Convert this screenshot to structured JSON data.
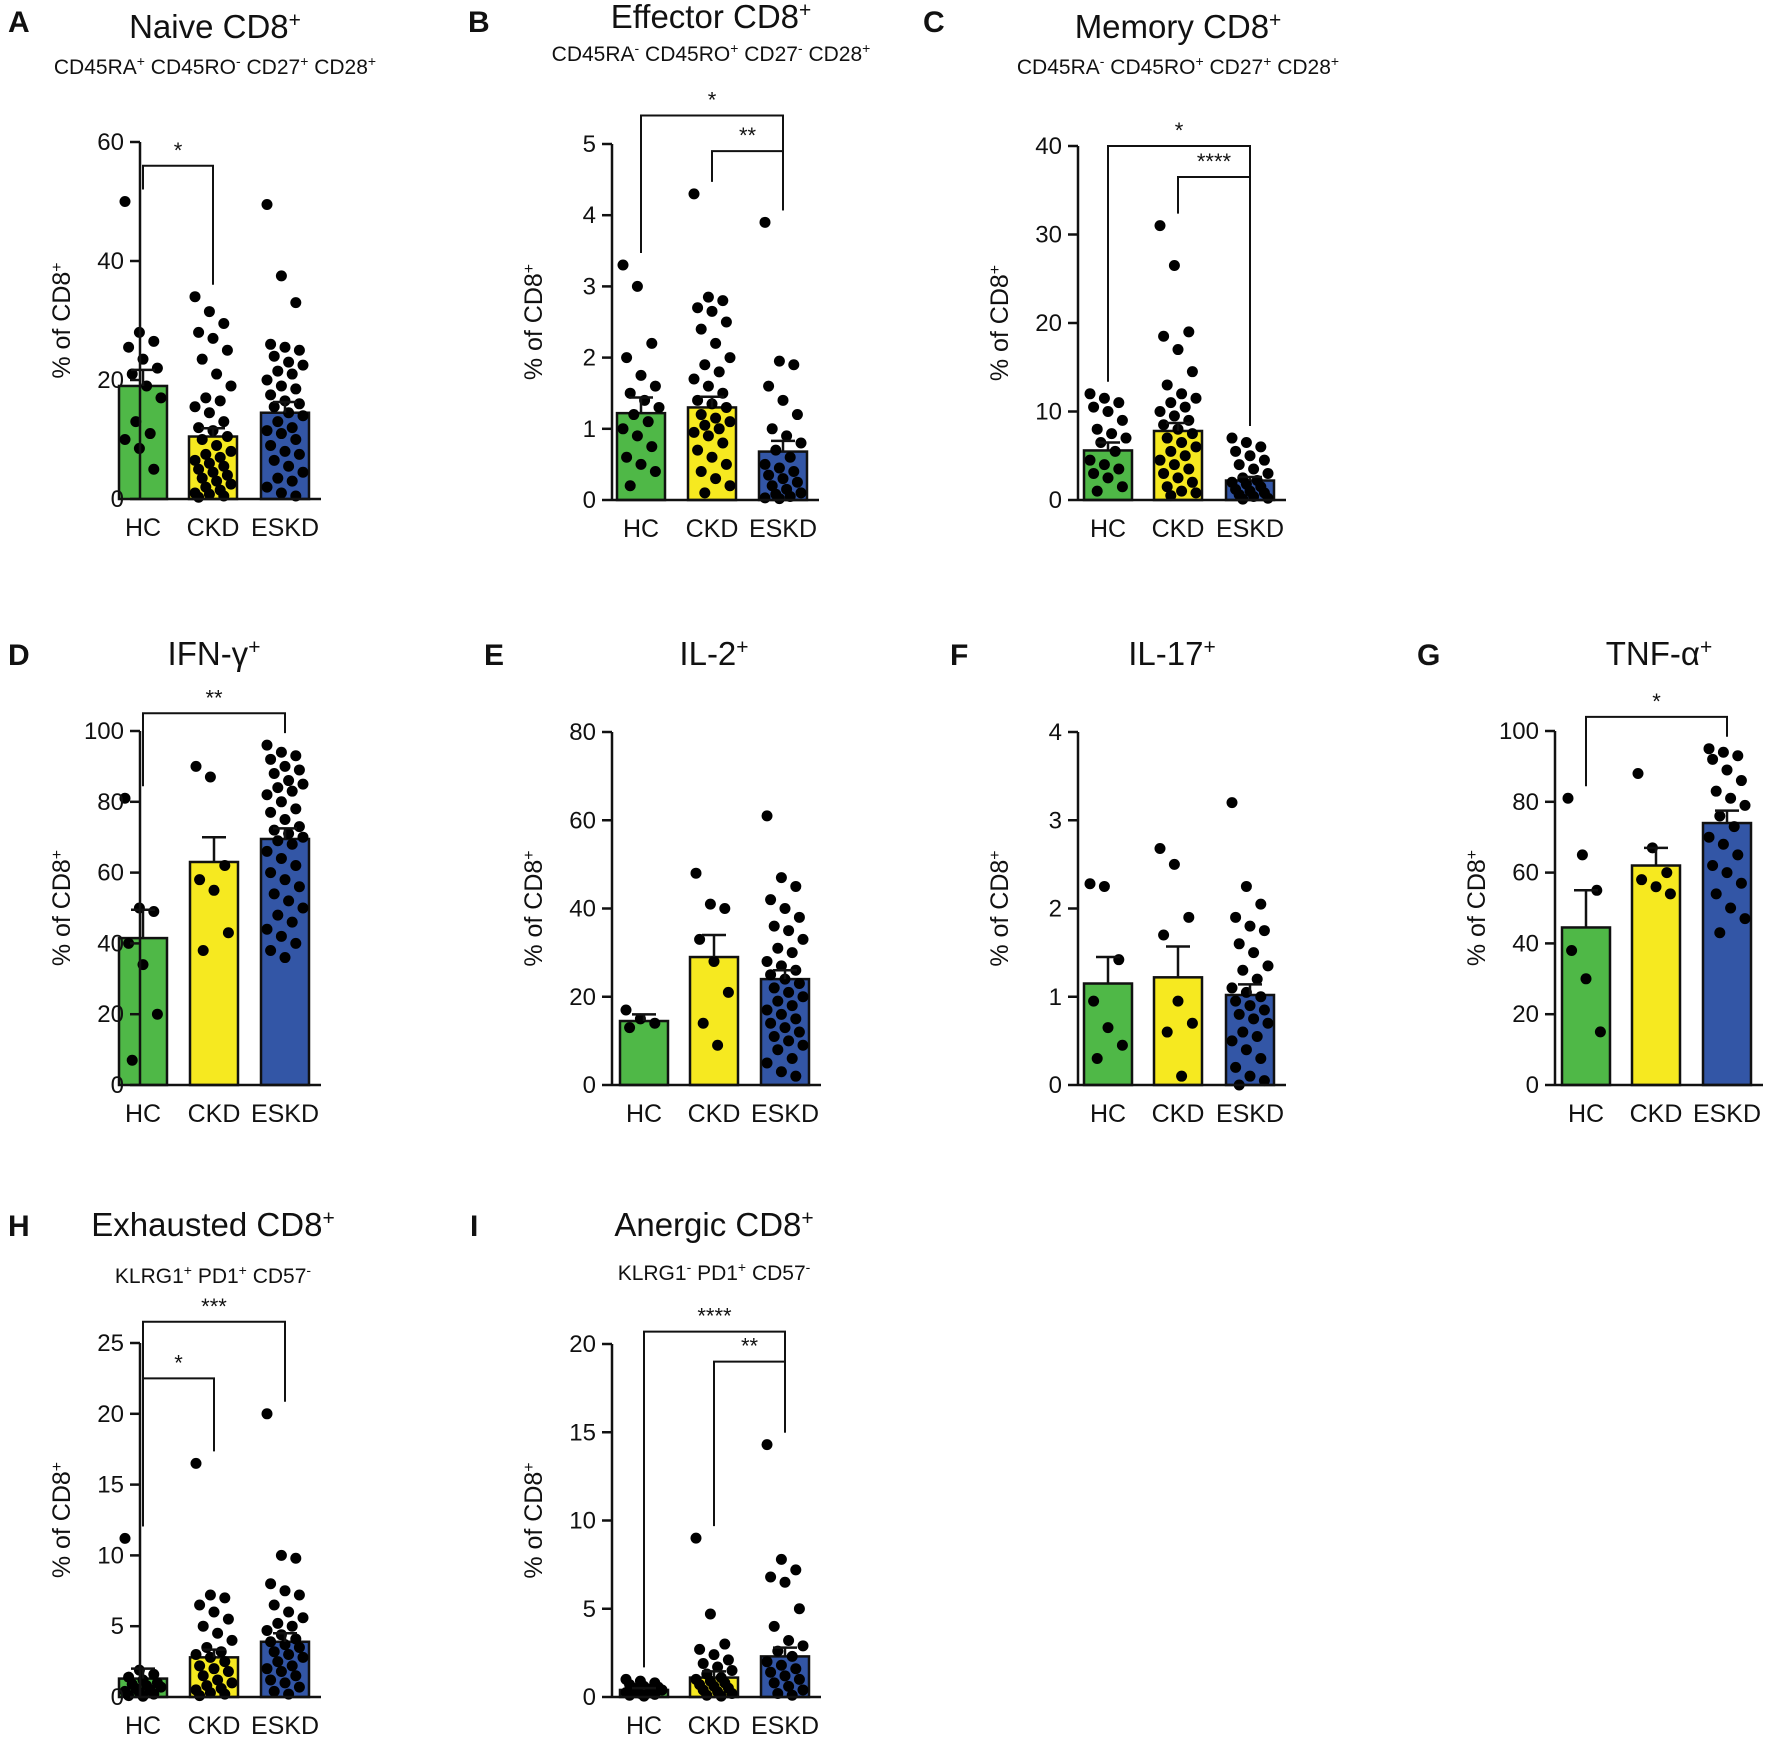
{
  "figure": {
    "y_axis_label_main": "% of CD8",
    "y_axis_label_sup": "+",
    "colors": {
      "HC": "#4fb847",
      "CKD": "#f6e920",
      "ESKD": "#3356a6",
      "dot": "#000000",
      "axis": "#111111"
    }
  },
  "chart_data": [
    {
      "id": "A",
      "panel_letter": "A",
      "type": "bar",
      "title": {
        "main": "Naive CD8",
        "sup": "+"
      },
      "subtitle": [
        {
          "t": "CD45RA"
        },
        {
          "t": "+",
          "s": "sup"
        },
        {
          "t": " CD45RO"
        },
        {
          "t": "-",
          "s": "sup"
        },
        {
          "t": " CD27"
        },
        {
          "t": "+",
          "s": "sup"
        },
        {
          "t": " CD28"
        },
        {
          "t": "+",
          "s": "sup"
        }
      ],
      "categories": [
        "HC",
        "CKD",
        "ESKD"
      ],
      "values": [
        19,
        10.5,
        14.5
      ],
      "sem": [
        2.7,
        1.4,
        1.8
      ],
      "ylim": [
        0,
        60
      ],
      "yticks": [
        0,
        20,
        40,
        60
      ],
      "tick_labels": [
        "0",
        "20",
        "40",
        "60"
      ],
      "ylabel": "% of CD8+",
      "points": [
        [
          50,
          28,
          26.5,
          25.5,
          23.5,
          22,
          21,
          19,
          17,
          13,
          11,
          10,
          8.5,
          5
        ],
        [
          34,
          31.5,
          29.5,
          28,
          27,
          25,
          23.5,
          21,
          19,
          17,
          16.5,
          15.5,
          14.5,
          13,
          12,
          11.5,
          10.5,
          10,
          9,
          8,
          7.5,
          7,
          6.5,
          6,
          5.5,
          5,
          4.5,
          4,
          3.5,
          3,
          2.5,
          2,
          1.5,
          1,
          0.8,
          0.5,
          0.3
        ],
        [
          49.5,
          37.5,
          33,
          26,
          25.5,
          25,
          24,
          23,
          22.5,
          21.5,
          21,
          20,
          19,
          18.5,
          17.5,
          16.5,
          16,
          15.5,
          14.5,
          14,
          13,
          12,
          11.5,
          11,
          10,
          9,
          8,
          7.5,
          6.5,
          5.5,
          4.5,
          3.5,
          3,
          2,
          1,
          0.5
        ]
      ],
      "sig": [
        {
          "from": 0,
          "to": 1,
          "label": "*",
          "y": 56
        }
      ]
    },
    {
      "id": "B",
      "panel_letter": "B",
      "type": "bar",
      "title": {
        "main": "Effector CD8",
        "sup": "+"
      },
      "subtitle": [
        {
          "t": "CD45RA"
        },
        {
          "t": "-",
          "s": "sup"
        },
        {
          "t": " CD45RO"
        },
        {
          "t": "+",
          "s": "sup"
        },
        {
          "t": " CD27"
        },
        {
          "t": "-",
          "s": "sup"
        },
        {
          "t": " CD28"
        },
        {
          "t": "+",
          "s": "sup"
        }
      ],
      "categories": [
        "HC",
        "CKD",
        "ESKD"
      ],
      "values": [
        1.22,
        1.3,
        0.68
      ],
      "sem": [
        0.22,
        0.15,
        0.15
      ],
      "ylim": [
        0,
        5
      ],
      "yticks": [
        0,
        1,
        2,
        3,
        4,
        5
      ],
      "tick_labels": [
        "0",
        "1",
        "2",
        "3",
        "4",
        "5"
      ],
      "ylabel": "% of CD8+",
      "points": [
        [
          3.3,
          3.0,
          2.2,
          2.0,
          1.75,
          1.6,
          1.5,
          1.4,
          1.3,
          1.2,
          1.1,
          1.0,
          0.9,
          0.75,
          0.6,
          0.5,
          0.4,
          0.2
        ],
        [
          4.3,
          2.85,
          2.8,
          2.7,
          2.65,
          2.5,
          2.4,
          2.2,
          2.0,
          1.9,
          1.8,
          1.7,
          1.6,
          1.5,
          1.4,
          1.35,
          1.3,
          1.2,
          1.15,
          1.1,
          1.05,
          1.0,
          0.95,
          0.9,
          0.8,
          0.7,
          0.6,
          0.5,
          0.4,
          0.3,
          0.2,
          0.1
        ],
        [
          3.9,
          1.95,
          1.9,
          1.6,
          1.4,
          1.2,
          1.0,
          0.9,
          0.8,
          0.7,
          0.6,
          0.5,
          0.45,
          0.4,
          0.35,
          0.3,
          0.25,
          0.2,
          0.15,
          0.1,
          0.08,
          0.05,
          0.03,
          0.02
        ]
      ],
      "sig": [
        {
          "from": 0,
          "to": 2,
          "label": "*",
          "y": 5.4
        },
        {
          "from": 1,
          "to": 2,
          "label": "**",
          "y": 4.9
        }
      ]
    },
    {
      "id": "C",
      "panel_letter": "C",
      "type": "bar",
      "title": {
        "main": "Memory CD8",
        "sup": "+"
      },
      "subtitle": [
        {
          "t": "CD45RA"
        },
        {
          "t": "-",
          "s": "sup"
        },
        {
          "t": " CD45RO"
        },
        {
          "t": "+",
          "s": "sup"
        },
        {
          "t": " CD27"
        },
        {
          "t": "+",
          "s": "sup"
        },
        {
          "t": " CD28"
        },
        {
          "t": "+",
          "s": "sup"
        }
      ],
      "categories": [
        "HC",
        "CKD",
        "ESKD"
      ],
      "values": [
        5.6,
        7.8,
        2.2
      ],
      "sem": [
        0.9,
        0.9,
        0.4
      ],
      "ylim": [
        0,
        40
      ],
      "yticks": [
        0,
        10,
        20,
        30,
        40
      ],
      "tick_labels": [
        "0",
        "10",
        "20",
        "30",
        "40"
      ],
      "ylabel": "% of CD8+",
      "points": [
        [
          12,
          11.5,
          11,
          10.5,
          10,
          9,
          8,
          7.5,
          7,
          6.5,
          5.5,
          4.5,
          4,
          3.5,
          3,
          2.5,
          1.5,
          1
        ],
        [
          31,
          26.5,
          19,
          18.5,
          17,
          14.5,
          13,
          12,
          11.5,
          11,
          10.5,
          10,
          9.5,
          9,
          8.5,
          8,
          7.5,
          7,
          6.5,
          6,
          5.5,
          5,
          4.5,
          4,
          3.5,
          3,
          2.5,
          2,
          1.5,
          1,
          0.8,
          0.5
        ],
        [
          7,
          6.5,
          6,
          5.5,
          5,
          4.5,
          4,
          3.5,
          3,
          2.5,
          2.2,
          2,
          1.8,
          1.5,
          1.2,
          1,
          0.8,
          0.6,
          0.4,
          0.2,
          0.1
        ]
      ],
      "sig": [
        {
          "from": 0,
          "to": 2,
          "label": "*",
          "y": 40
        },
        {
          "from": 1,
          "to": 2,
          "label": "****",
          "y": 36.5
        }
      ]
    },
    {
      "id": "D",
      "panel_letter": "D",
      "type": "bar",
      "title": {
        "main": "IFN-γ",
        "sup": "+"
      },
      "subtitle": [],
      "categories": [
        "HC",
        "CKD",
        "ESKD"
      ],
      "values": [
        41.5,
        63,
        69.5
      ],
      "sem": [
        8,
        7,
        3
      ],
      "ylim": [
        0,
        100
      ],
      "yticks": [
        0,
        20,
        40,
        60,
        80,
        100
      ],
      "tick_labels": [
        "0",
        "20",
        "40",
        "60",
        "80",
        "100"
      ],
      "ylabel": "% of CD8+",
      "points": [
        [
          81,
          50,
          49,
          40,
          34,
          20,
          7
        ],
        [
          90,
          87,
          62,
          58,
          55,
          43,
          38
        ],
        [
          96,
          94,
          93,
          92,
          90,
          89,
          88,
          86,
          85,
          84,
          83,
          82,
          80,
          78,
          77,
          75,
          73,
          72,
          71,
          70,
          69,
          68,
          66,
          64,
          62,
          60,
          58,
          56,
          54,
          52,
          50,
          48,
          46,
          44,
          42,
          40,
          38,
          36
        ]
      ],
      "sig": [
        {
          "from": 0,
          "to": 2,
          "label": "**",
          "y": 105
        }
      ]
    },
    {
      "id": "E",
      "panel_letter": "E",
      "type": "bar",
      "title": {
        "main": "IL-2",
        "sup": "+"
      },
      "subtitle": [],
      "categories": [
        "HC",
        "CKD",
        "ESKD"
      ],
      "values": [
        14.5,
        29,
        24
      ],
      "sem": [
        1.5,
        5,
        2
      ],
      "ylim": [
        0,
        80
      ],
      "yticks": [
        0,
        20,
        40,
        60,
        80
      ],
      "tick_labels": [
        "0",
        "20",
        "40",
        "60",
        "80"
      ],
      "ylabel": "% of CD8+",
      "points": [
        [
          17,
          15,
          14,
          13
        ],
        [
          48,
          41,
          40,
          33,
          28,
          21,
          14,
          9
        ],
        [
          61,
          47,
          45,
          42,
          40,
          38,
          36,
          35,
          33,
          31,
          30,
          28,
          27,
          26,
          25,
          24,
          23,
          22,
          21,
          20,
          19,
          18,
          17,
          16,
          15,
          14,
          13,
          12,
          11,
          10,
          9,
          8,
          6,
          5,
          3,
          2
        ]
      ],
      "sig": []
    },
    {
      "id": "F",
      "panel_letter": "F",
      "type": "bar",
      "title": {
        "main": "IL-17",
        "sup": "+"
      },
      "subtitle": [],
      "categories": [
        "HC",
        "CKD",
        "ESKD"
      ],
      "values": [
        1.15,
        1.22,
        1.02
      ],
      "sem": [
        0.3,
        0.35,
        0.12
      ],
      "ylim": [
        0,
        4
      ],
      "yticks": [
        0,
        1,
        2,
        3,
        4
      ],
      "tick_labels": [
        "0",
        "1",
        "2",
        "3",
        "4"
      ],
      "ylabel": "% of CD8+",
      "points": [
        [
          2.28,
          2.25,
          1.42,
          0.95,
          0.65,
          0.45,
          0.3
        ],
        [
          2.68,
          2.5,
          1.9,
          1.7,
          0.95,
          0.7,
          0.6,
          0.1
        ],
        [
          3.2,
          2.25,
          2.05,
          1.9,
          1.8,
          1.75,
          1.6,
          1.5,
          1.35,
          1.3,
          1.2,
          1.1,
          1.05,
          1.0,
          0.95,
          0.9,
          0.85,
          0.8,
          0.75,
          0.7,
          0.6,
          0.55,
          0.5,
          0.4,
          0.3,
          0.2,
          0.1,
          0.05,
          0.0
        ]
      ],
      "sig": []
    },
    {
      "id": "G",
      "panel_letter": "G",
      "type": "bar",
      "title": {
        "main": "TNF-α",
        "sup": "+"
      },
      "subtitle": [],
      "categories": [
        "HC",
        "CKD",
        "ESKD"
      ],
      "values": [
        44.5,
        62,
        74
      ],
      "sem": [
        10.5,
        5,
        3.5
      ],
      "ylim": [
        0,
        100
      ],
      "yticks": [
        0,
        20,
        40,
        60,
        80,
        100
      ],
      "tick_labels": [
        "0",
        "20",
        "40",
        "60",
        "80",
        "100"
      ],
      "ylabel": "% of CD8+",
      "points": [
        [
          81,
          65,
          55,
          38,
          30,
          15
        ],
        [
          88,
          67,
          60,
          58,
          56,
          54
        ],
        [
          95,
          94,
          93,
          92,
          89,
          86,
          83,
          81,
          79,
          76,
          73,
          70,
          68,
          65,
          62,
          60,
          57,
          54,
          50,
          47,
          43
        ]
      ],
      "sig": [
        {
          "from": 0,
          "to": 2,
          "label": "*",
          "y": 104
        }
      ]
    },
    {
      "id": "H",
      "panel_letter": "H",
      "type": "bar",
      "title": {
        "main": "Exhausted CD8",
        "sup": "+"
      },
      "subtitle": [
        {
          "t": "KLRG1"
        },
        {
          "t": "+",
          "s": "sup"
        },
        {
          "t": " PD1"
        },
        {
          "t": "+",
          "s": "sup"
        },
        {
          "t": " CD57"
        },
        {
          "t": "-",
          "s": "sup"
        }
      ],
      "categories": [
        "HC",
        "CKD",
        "ESKD"
      ],
      "values": [
        1.3,
        2.8,
        3.9
      ],
      "sem": [
        0.7,
        0.55,
        0.6
      ],
      "ylim": [
        0,
        25
      ],
      "yticks": [
        0,
        5,
        10,
        15,
        20,
        25
      ],
      "tick_labels": [
        "0",
        "5",
        "10",
        "15",
        "20",
        "25"
      ],
      "ylabel": "% of CD8+",
      "points": [
        [
          11.2,
          1.9,
          1.6,
          1.4,
          1.2,
          1.0,
          0.9,
          0.8,
          0.7,
          0.6,
          0.5,
          0.4,
          0.3,
          0.2,
          0.1,
          0.05
        ],
        [
          16.5,
          7.2,
          7.0,
          6.5,
          6.0,
          5.5,
          5.0,
          4.5,
          4.0,
          3.5,
          3.2,
          3.0,
          2.8,
          2.5,
          2.2,
          2.0,
          1.8,
          1.5,
          1.2,
          1.0,
          0.8,
          0.6,
          0.5,
          0.3,
          0.2,
          0.1
        ],
        [
          20,
          10,
          9.8,
          8,
          7.5,
          7.2,
          6.5,
          6.0,
          5.6,
          5.2,
          5.0,
          4.7,
          4.4,
          4.1,
          3.9,
          3.7,
          3.5,
          3.2,
          3.0,
          2.8,
          2.5,
          2.2,
          2.0,
          1.8,
          1.5,
          1.2,
          1.0,
          0.7,
          0.4,
          0.2
        ]
      ],
      "sig": [
        {
          "from": 0,
          "to": 2,
          "label": "***",
          "y": 26.5
        },
        {
          "from": 0,
          "to": 1,
          "label": "*",
          "y": 22.5
        }
      ]
    },
    {
      "id": "I",
      "panel_letter": "I",
      "type": "bar",
      "title": {
        "main": "Anergic CD8",
        "sup": "+"
      },
      "subtitle": [
        {
          "t": "KLRG1"
        },
        {
          "t": "-",
          "s": "sup"
        },
        {
          "t": " PD1"
        },
        {
          "t": "+",
          "s": "sup"
        },
        {
          "t": " CD57"
        },
        {
          "t": "-",
          "s": "sup"
        }
      ],
      "categories": [
        "HC",
        "CKD",
        "ESKD"
      ],
      "values": [
        0.4,
        1.1,
        2.3
      ],
      "sem": [
        0.1,
        0.35,
        0.5
      ],
      "ylim": [
        0,
        20
      ],
      "yticks": [
        0,
        5,
        10,
        15,
        20
      ],
      "tick_labels": [
        "0",
        "5",
        "10",
        "15",
        "20"
      ],
      "ylabel": "% of CD8+",
      "points": [
        [
          1.0,
          0.9,
          0.8,
          0.7,
          0.6,
          0.55,
          0.5,
          0.45,
          0.4,
          0.35,
          0.3,
          0.25,
          0.2,
          0.15,
          0.1,
          0.05
        ],
        [
          9,
          4.7,
          3.0,
          2.7,
          2.4,
          2.1,
          1.9,
          1.7,
          1.5,
          1.3,
          1.1,
          1.0,
          0.9,
          0.8,
          0.7,
          0.6,
          0.5,
          0.4,
          0.3,
          0.2,
          0.1,
          0.05
        ],
        [
          14.3,
          7.8,
          7.2,
          6.8,
          6.5,
          5.0,
          4.0,
          3.2,
          2.9,
          2.6,
          2.3,
          2.0,
          1.8,
          1.6,
          1.4,
          1.2,
          1.0,
          0.8,
          0.6,
          0.4,
          0.2,
          0.1
        ]
      ],
      "sig": [
        {
          "from": 0,
          "to": 2,
          "label": "****",
          "y": 20.7
        },
        {
          "from": 1,
          "to": 2,
          "label": "**",
          "y": 19
        }
      ]
    }
  ]
}
